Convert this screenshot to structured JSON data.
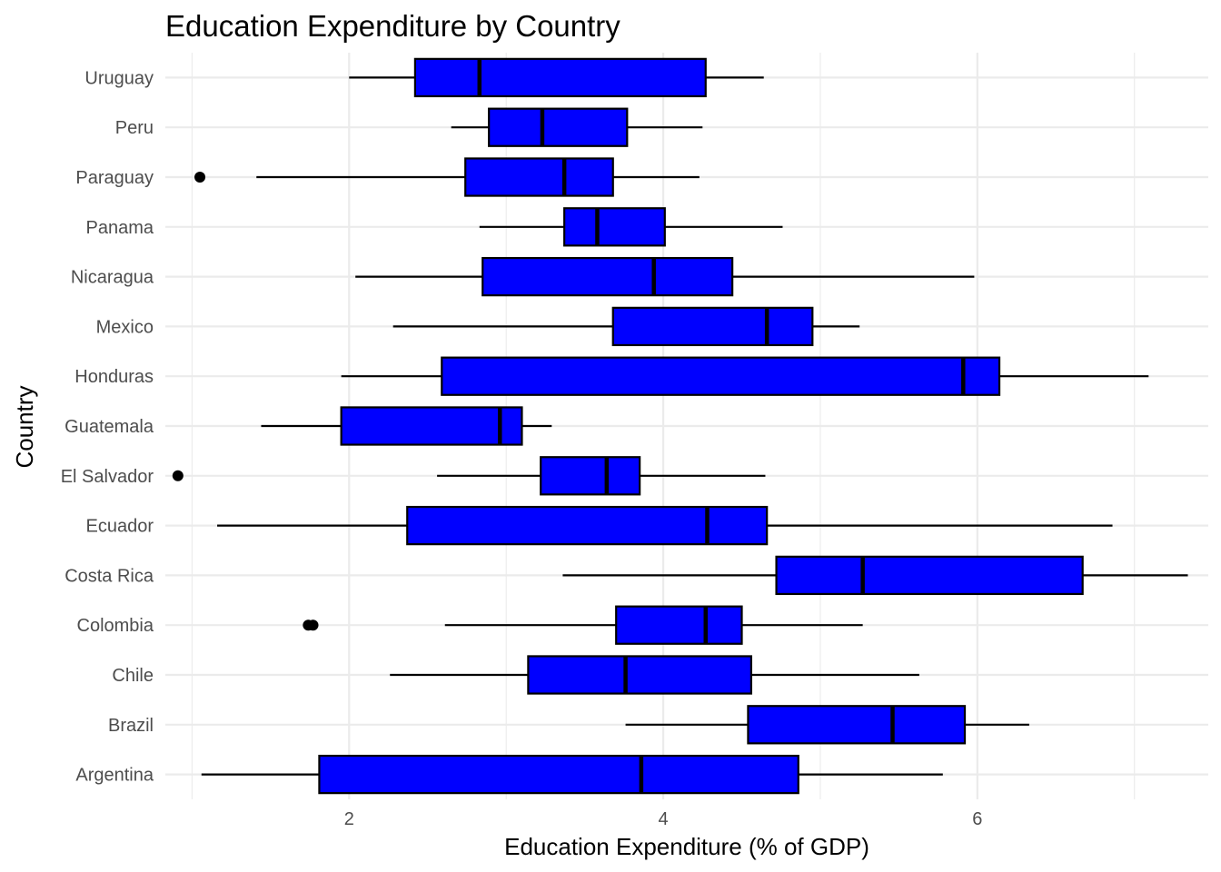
{
  "chart_data": {
    "type": "boxplot",
    "orientation": "horizontal",
    "title": "Education Expenditure by Country",
    "xlabel": "Education Expenditure (% of GDP)",
    "ylabel": "Country",
    "xlim": [
      0.83,
      7.47
    ],
    "xticks": [
      2,
      4,
      6
    ],
    "x_minor_ticks": [
      1,
      3,
      5,
      7
    ],
    "grid": true,
    "box_fill": "#0000ff",
    "box_stroke": "#000000",
    "outlier_color": "#000000",
    "categories": [
      "Argentina",
      "Brazil",
      "Chile",
      "Colombia",
      "Costa Rica",
      "Ecuador",
      "El Salvador",
      "Guatemala",
      "Honduras",
      "Mexico",
      "Nicaragua",
      "Panama",
      "Paraguay",
      "Peru",
      "Uruguay"
    ],
    "boxes": [
      {
        "category": "Argentina",
        "whisker_low": 1.06,
        "q1": 1.81,
        "median": 3.86,
        "q3": 4.86,
        "whisker_high": 5.78,
        "outliers": []
      },
      {
        "category": "Brazil",
        "whisker_low": 3.76,
        "q1": 4.54,
        "median": 5.46,
        "q3": 5.92,
        "whisker_high": 6.33,
        "outliers": []
      },
      {
        "category": "Chile",
        "whisker_low": 2.26,
        "q1": 3.14,
        "median": 3.76,
        "q3": 4.56,
        "whisker_high": 5.63,
        "outliers": []
      },
      {
        "category": "Colombia",
        "whisker_low": 2.61,
        "q1": 3.7,
        "median": 4.27,
        "q3": 4.5,
        "whisker_high": 5.27,
        "outliers": [
          1.74,
          1.77
        ]
      },
      {
        "category": "Costa Rica",
        "whisker_low": 3.36,
        "q1": 4.72,
        "median": 5.27,
        "q3": 6.67,
        "whisker_high": 7.34,
        "outliers": []
      },
      {
        "category": "Ecuador",
        "whisker_low": 1.16,
        "q1": 2.37,
        "median": 4.28,
        "q3": 4.66,
        "whisker_high": 6.86,
        "outliers": []
      },
      {
        "category": "El Salvador",
        "whisker_low": 2.56,
        "q1": 3.22,
        "median": 3.64,
        "q3": 3.85,
        "whisker_high": 4.65,
        "outliers": [
          0.91
        ]
      },
      {
        "category": "Guatemala",
        "whisker_low": 1.44,
        "q1": 1.95,
        "median": 2.96,
        "q3": 3.1,
        "whisker_high": 3.29,
        "outliers": []
      },
      {
        "category": "Honduras",
        "whisker_low": 1.95,
        "q1": 2.59,
        "median": 5.91,
        "q3": 6.14,
        "whisker_high": 7.09,
        "outliers": []
      },
      {
        "category": "Mexico",
        "whisker_low": 2.28,
        "q1": 3.68,
        "median": 4.66,
        "q3": 4.95,
        "whisker_high": 5.25,
        "outliers": []
      },
      {
        "category": "Nicaragua",
        "whisker_low": 2.04,
        "q1": 2.85,
        "median": 3.94,
        "q3": 4.44,
        "whisker_high": 5.98,
        "outliers": []
      },
      {
        "category": "Panama",
        "whisker_low": 2.83,
        "q1": 3.37,
        "median": 3.58,
        "q3": 4.01,
        "whisker_high": 4.76,
        "outliers": []
      },
      {
        "category": "Paraguay",
        "whisker_low": 1.41,
        "q1": 2.74,
        "median": 3.37,
        "q3": 3.68,
        "whisker_high": 4.23,
        "outliers": [
          1.05
        ]
      },
      {
        "category": "Peru",
        "whisker_low": 2.65,
        "q1": 2.89,
        "median": 3.23,
        "q3": 3.77,
        "whisker_high": 4.25,
        "outliers": []
      },
      {
        "category": "Uruguay",
        "whisker_low": 2.0,
        "q1": 2.42,
        "median": 2.83,
        "q3": 4.27,
        "whisker_high": 4.64,
        "outliers": []
      }
    ]
  }
}
